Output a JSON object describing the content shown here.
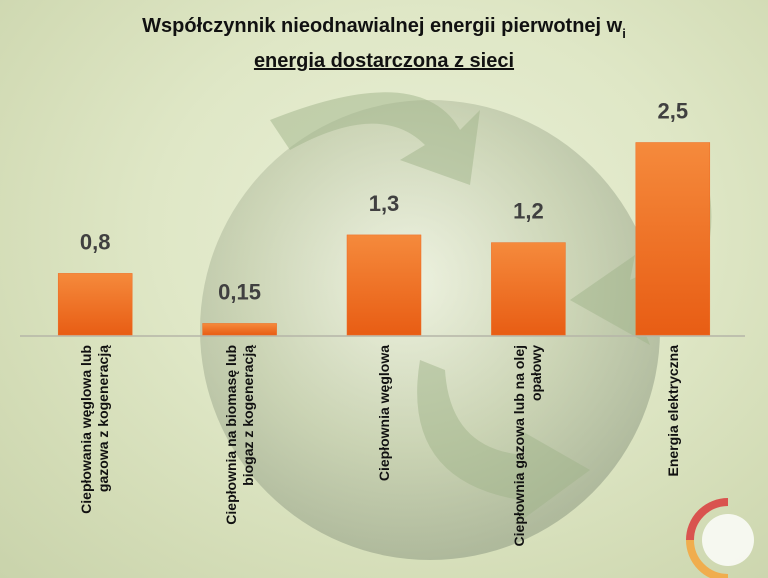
{
  "chart_data": {
    "type": "bar",
    "title": "Współczynnik nieodnawialnej energii pierwotnej w",
    "title_subscript": "i",
    "subtitle": "energia dostarczona z sieci",
    "categories": [
      "Ciepłowania węglowa lub gazowa z kogeneracją",
      "Ciepłownia na biomasę lub biogaz z kogeneracją",
      "Ciepłownia węglowa",
      "Ciepłownia gazowa lub na olej opałowy",
      "Energia elektryczna"
    ],
    "values": [
      0.8,
      0.15,
      1.3,
      1.2,
      2.5
    ],
    "value_labels": [
      "0,8",
      "0,15",
      "1,3",
      "1,2",
      "2,5"
    ],
    "color": "#ee6b22",
    "grid": false
  }
}
